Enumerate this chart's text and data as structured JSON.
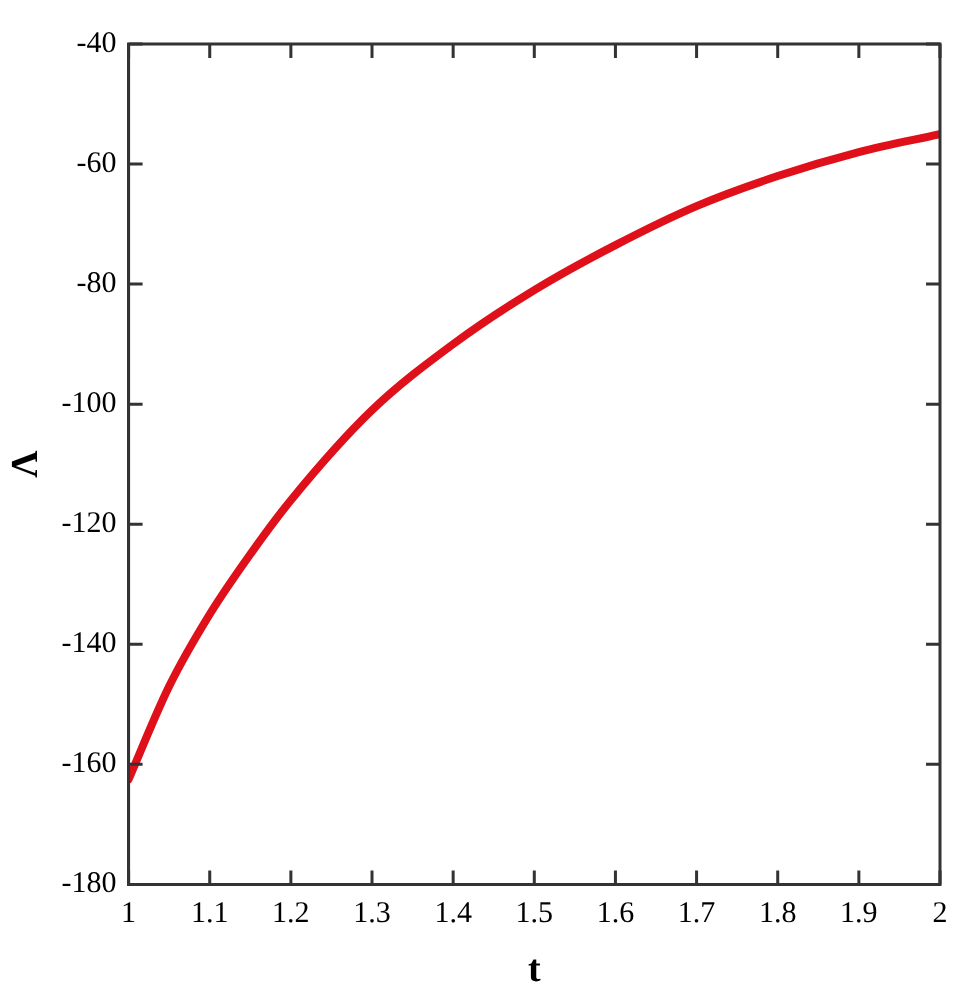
{
  "chart_data": {
    "type": "line",
    "xlabel": "t",
    "ylabel": "Λ",
    "x": [
      1,
      1.05,
      1.1,
      1.15,
      1.2,
      1.3,
      1.4,
      1.5,
      1.6,
      1.7,
      1.8,
      1.9,
      2
    ],
    "series": [
      {
        "color": "#e0101a",
        "values": [
          -162.5,
          -147,
          -135,
          -125,
          -116,
          -101,
          -90,
          -81,
          -73.5,
          -67,
          -62,
          -58,
          -55
        ]
      }
    ],
    "xlim": [
      1,
      2
    ],
    "xticks": [
      1,
      1.1,
      1.2,
      1.3,
      1.4,
      1.5,
      1.6,
      1.7,
      1.8,
      1.9,
      2
    ],
    "ylim": [
      -180,
      -40
    ],
    "yticks": [
      -180,
      -160,
      -140,
      -120,
      -100,
      -80,
      -60,
      -40
    ],
    "grid": false,
    "legend": false,
    "marker": "none",
    "line_style": "solid"
  }
}
